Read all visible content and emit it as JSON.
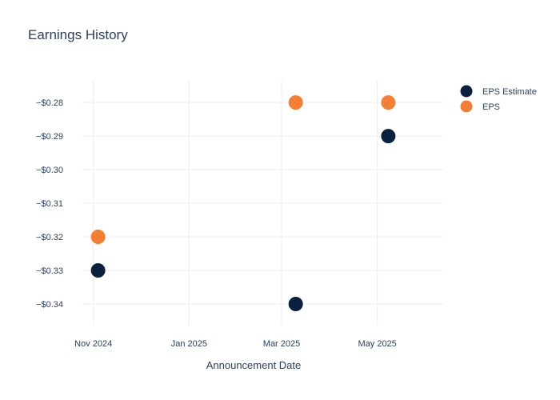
{
  "chart_data": {
    "type": "scatter",
    "title": "Earnings History",
    "xlabel": "Announcement Date",
    "ylabel": "",
    "x_ticks": [
      "Nov 2024",
      "Jan 2025",
      "Mar 2025",
      "May 2025"
    ],
    "y_ticks": [
      "−$0.28",
      "−$0.29",
      "−$0.30",
      "−$0.31",
      "−$0.32",
      "−$0.33",
      "−$0.34"
    ],
    "y_tick_values": [
      -0.28,
      -0.29,
      -0.3,
      -0.31,
      -0.32,
      -0.33,
      -0.34
    ],
    "ylim": [
      -0.3462,
      -0.2733
    ],
    "grid": true,
    "legend_position": "top-right",
    "series": [
      {
        "name": "EPS Estimate",
        "color": "#0b1f3f",
        "points": [
          {
            "x": "2024-11-04",
            "y": -0.33
          },
          {
            "x": "2025-03-10",
            "y": -0.34
          },
          {
            "x": "2025-05-08",
            "y": -0.29
          }
        ]
      },
      {
        "name": "EPS",
        "color": "#f57e33",
        "points": [
          {
            "x": "2024-11-04",
            "y": -0.32
          },
          {
            "x": "2025-03-10",
            "y": -0.28
          },
          {
            "x": "2025-05-08",
            "y": -0.28
          }
        ]
      }
    ]
  }
}
